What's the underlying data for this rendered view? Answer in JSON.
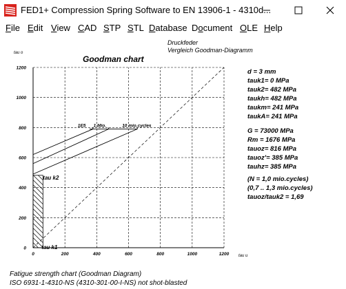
{
  "window": {
    "title": "FED1+  Compression Spring Software to EN 13906-1  -  4310d...",
    "minimize_icon": "minimize-icon",
    "maximize_icon": "maximize-icon",
    "close_icon": "close-icon"
  },
  "menu": {
    "items": [
      {
        "label": "File",
        "accel": "F",
        "rest": "ile"
      },
      {
        "label": "Edit",
        "accel": "E",
        "rest": "dit"
      },
      {
        "label": "View",
        "accel": "V",
        "rest": "iew"
      },
      {
        "label": "CAD",
        "accel": "C",
        "rest": "AD"
      },
      {
        "label": "STP",
        "accel": "S",
        "rest": "TP"
      },
      {
        "label": "STL",
        "accel": "S",
        "rest": "TL"
      },
      {
        "label": "Database",
        "accel": "D",
        "rest": "atabase"
      },
      {
        "label": "Document",
        "accel": "D",
        "rest": "ocument",
        "accel_pos": 1
      },
      {
        "label": "OLE",
        "accel": "O",
        "rest": "LE"
      },
      {
        "label": "Help",
        "accel": "H",
        "rest": "elp"
      }
    ]
  },
  "header": {
    "line1": "Druckfeder",
    "line2": "Vergleich Goodman-Diagramm"
  },
  "chart_data": {
    "type": "line",
    "title": "Goodman chart",
    "xlabel": "tau u",
    "ylabel": "tau o",
    "xlim": [
      0,
      1200
    ],
    "ylim": [
      0,
      1200
    ],
    "x_ticks": [
      0,
      200,
      400,
      600,
      800,
      1000,
      1200
    ],
    "y_ticks": [
      0,
      200,
      400,
      600,
      800,
      1000,
      1200
    ],
    "grid": true,
    "point_labels": {
      "tau_k1": "tau k1",
      "tau_k2": "tau k2"
    },
    "series": [
      {
        "name": "1E5",
        "x": [
          0,
          376,
          376
        ],
        "y": [
          620,
          790,
          800
        ]
      },
      {
        "name": "1 Mio.",
        "x": [
          0,
          475,
          475
        ],
        "y": [
          560,
          790,
          800
        ]
      },
      {
        "name": "10 mio.cycles",
        "x": [
          0,
          655,
          655
        ],
        "y": [
          490,
          790,
          800
        ]
      }
    ],
    "diagonal": {
      "x": [
        0,
        1200
      ],
      "y": [
        0,
        1200
      ]
    },
    "hatch_band": {
      "x": [
        0,
        62
      ],
      "y": [
        0,
        482
      ]
    },
    "cycle_labels": [
      "1E5",
      "1 Mio.",
      "10 mio.cycles"
    ]
  },
  "params": [
    {
      "label": "d",
      "sep": " = ",
      "value": "3 mm"
    },
    {
      "label": "tauk1",
      "sep": "= ",
      "value": "  0 MPa"
    },
    {
      "label": "tauk2",
      "sep": "= ",
      "value": "482 MPa"
    },
    {
      "label": "taukh",
      "sep": "= ",
      "value": "482 MPa"
    },
    {
      "label": "taukm",
      "sep": "= ",
      "value": " 241 MPa"
    },
    {
      "label": "taukA",
      "sep": "= ",
      "value": " 241 MPa"
    }
  ],
  "params2": [
    {
      "label": "G",
      "sep": " = ",
      "value": " 73000 MPa"
    },
    {
      "label": "Rm",
      "sep": " = ",
      "value": " 1676 MPa"
    },
    {
      "label": "tauoz",
      "sep": "= ",
      "value": " 816 MPa"
    },
    {
      "label": "tauoz'",
      "sep": "= ",
      "value": " 385 MPa"
    },
    {
      "label": "tauhz",
      "sep": "= ",
      "value": " 385 MPa"
    }
  ],
  "notes": {
    "line1": "(N = 1,0 mio.cycles)",
    "line2": "(0,7 .. 1,3 mio.cycles)",
    "line3": "tauoz/tauk2 = 1,69"
  },
  "footer": {
    "line1": "Fatigue strength chart (Goodman Diagram)",
    "line2": "ISO 6931-1-4310-NS (4310-301-00-I-NS) not shot-blasted"
  }
}
